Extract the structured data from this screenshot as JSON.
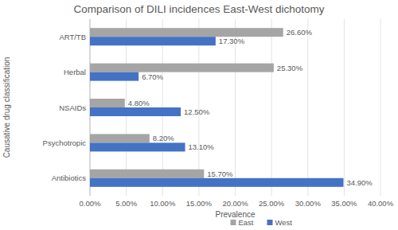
{
  "chart_data": {
    "type": "bar",
    "orientation": "horizontal",
    "title": "Comparison of DILI incidences East-West dichotomy",
    "x_label": "Prevalence",
    "y_label": "Causative drug classification",
    "categories": [
      "ART/TB",
      "Herbal",
      "NSAIDs",
      "Psychotropic",
      "Antibiotics"
    ],
    "series": [
      {
        "name": "East",
        "color": "#a5a5a5",
        "values": [
          26.6,
          25.3,
          4.8,
          8.2,
          15.7
        ],
        "value_labels": [
          "26.60%",
          "25.30%",
          "4.80%",
          "8.20%",
          "15.70%"
        ]
      },
      {
        "name": "West",
        "color": "#4472c4",
        "values": [
          17.3,
          6.7,
          12.5,
          13.1,
          34.9
        ],
        "value_labels": [
          "17.30%",
          "6.70%",
          "12.50%",
          "13.10%",
          "34.90%"
        ]
      }
    ],
    "xlim": [
      0,
      40
    ],
    "xticks": [
      {
        "value": 0,
        "label": "0.00%"
      },
      {
        "value": 5,
        "label": "5.00%"
      },
      {
        "value": 10,
        "label": "10.00%"
      },
      {
        "value": 15,
        "label": "15.00%"
      },
      {
        "value": 20,
        "label": "20.00%"
      },
      {
        "value": 25,
        "label": "25.00%"
      },
      {
        "value": 30,
        "label": "30.00%"
      },
      {
        "value": 35,
        "label": "35.00%"
      },
      {
        "value": 40,
        "label": "40.00%"
      }
    ],
    "grid": true,
    "data_labels": true,
    "legend": "bottom"
  }
}
